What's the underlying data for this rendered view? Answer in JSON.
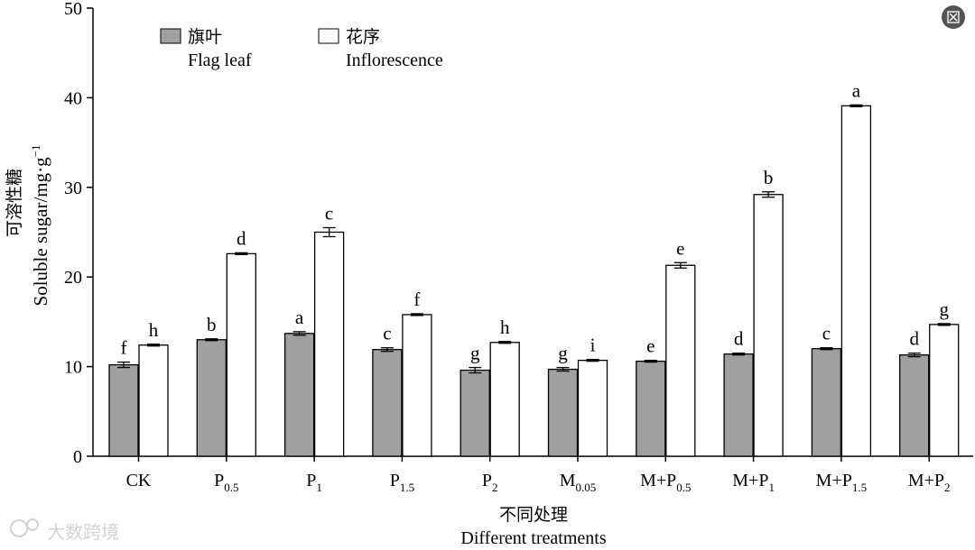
{
  "chart_data": {
    "type": "bar",
    "ylabel_zh": "可溶性糖",
    "ylabel_en": "Soluble sugar/mg·g",
    "ylabel_sup": "−1",
    "xlabel_zh": "不同处理",
    "xlabel_en": "Different treatments",
    "ylim": [
      0,
      50
    ],
    "yticks": [
      "0",
      "10",
      "20",
      "30",
      "40",
      "50"
    ],
    "categories": [
      {
        "base": "CK",
        "sub": ""
      },
      {
        "base": "P",
        "sub": "0.5"
      },
      {
        "base": "P",
        "sub": "1"
      },
      {
        "base": "P",
        "sub": "1.5"
      },
      {
        "base": "P",
        "sub": "2"
      },
      {
        "base": "M",
        "sub": "0.05"
      },
      {
        "base": "M+P",
        "sub": "0.5"
      },
      {
        "base": "M+P",
        "sub": "1"
      },
      {
        "base": "M+P",
        "sub": "1.5"
      },
      {
        "base": "M+P",
        "sub": "2"
      }
    ],
    "series": [
      {
        "name_zh": "旗叶",
        "name_en": "Flag leaf",
        "color": "#a0a0a0",
        "values": [
          10.2,
          13.0,
          13.7,
          11.9,
          9.6,
          9.7,
          10.6,
          11.4,
          12.0,
          11.3
        ],
        "errors": [
          0.3,
          0.1,
          0.2,
          0.2,
          0.3,
          0.2,
          0.1,
          0.1,
          0.1,
          0.2
        ],
        "labels": [
          "f",
          "b",
          "a",
          "c",
          "g",
          "g",
          "e",
          "d",
          "c",
          "d"
        ]
      },
      {
        "name_zh": "花序",
        "name_en": "Inflorescence",
        "color": "#ffffff",
        "values": [
          12.4,
          22.6,
          25.0,
          15.8,
          12.7,
          10.7,
          21.3,
          29.2,
          39.1,
          14.7
        ],
        "errors": [
          0.1,
          0.1,
          0.5,
          0.1,
          0.1,
          0.1,
          0.3,
          0.3,
          0.1,
          0.1
        ],
        "labels": [
          "h",
          "d",
          "c",
          "f",
          "h",
          "i",
          "e",
          "b",
          "a",
          "g"
        ]
      }
    ]
  },
  "watermark": "大数跨境"
}
